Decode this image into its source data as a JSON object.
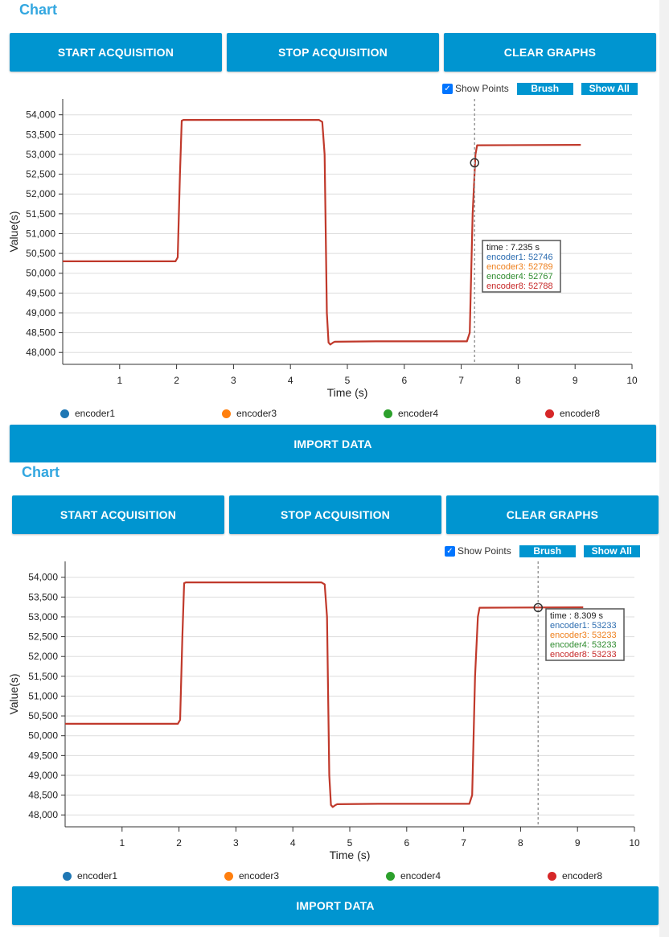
{
  "panels": [
    {
      "heading": "Chart",
      "buttons": {
        "start": "START ACQUISITION",
        "stop": "STOP ACQUISITION",
        "clear": "CLEAR GRAPHS",
        "import": "IMPORT DATA"
      },
      "controls": {
        "show_points_label": "Show Points",
        "show_points_checked": true,
        "brush": "Brush",
        "show_all": "Show All"
      },
      "tooltip": {
        "time": "time : 7.235 s",
        "lines": [
          {
            "text": "encoder1: 52746",
            "color": "#2b6cb0"
          },
          {
            "text": "encoder3: 52789",
            "color": "#ee7f1b"
          },
          {
            "text": "encoder4: 52767",
            "color": "#2e8b2e"
          },
          {
            "text": "encoder8: 52788",
            "color": "#c62828"
          }
        ]
      },
      "cursor": {
        "time": 7.235,
        "value": 52788
      }
    },
    {
      "heading": "Chart",
      "buttons": {
        "start": "START ACQUISITION",
        "stop": "STOP ACQUISITION",
        "clear": "CLEAR GRAPHS",
        "import": "IMPORT DATA"
      },
      "controls": {
        "show_points_label": "Show Points",
        "show_points_checked": true,
        "brush": "Brush",
        "show_all": "Show All"
      },
      "tooltip": {
        "time": "time : 8.309 s",
        "lines": [
          {
            "text": "encoder1: 53233",
            "color": "#2b6cb0"
          },
          {
            "text": "encoder3: 53233",
            "color": "#ee7f1b"
          },
          {
            "text": "encoder4: 53233",
            "color": "#2e8b2e"
          },
          {
            "text": "encoder8: 53233",
            "color": "#c62828"
          }
        ]
      },
      "cursor": {
        "time": 8.309,
        "value": 53233
      }
    }
  ],
  "legend": [
    {
      "name": "encoder1",
      "color": "#1f77b4"
    },
    {
      "name": "encoder3",
      "color": "#ff7f0e"
    },
    {
      "name": "encoder4",
      "color": "#2ca02c"
    },
    {
      "name": "encoder8",
      "color": "#d62728"
    }
  ],
  "chart_data": [
    {
      "type": "line",
      "title": "",
      "xlabel": "Time (s)",
      "ylabel": "Value(s)",
      "xlim": [
        0,
        10
      ],
      "ylim": [
        47700,
        54400
      ],
      "x_ticks": [
        1,
        2,
        3,
        4,
        5,
        6,
        7,
        8,
        9,
        10
      ],
      "y_ticks": [
        48000,
        48500,
        49000,
        49500,
        50000,
        50500,
        51000,
        51500,
        52000,
        52500,
        53000,
        53500,
        54000
      ],
      "y_tick_labels": [
        "48,000",
        "48,500",
        "49,000",
        "49,500",
        "50,000",
        "50,500",
        "51,000",
        "51,500",
        "52,000",
        "52,500",
        "53,000",
        "53,500",
        "54,000"
      ],
      "grid": "horizontal",
      "legend_position": "bottom",
      "series": [
        {
          "name": "encoder8",
          "color": "#c0392b",
          "x": [
            0,
            1.98,
            2.02,
            2.06,
            2.09,
            2.12,
            4.5,
            4.56,
            4.6,
            4.64,
            4.67,
            4.7,
            4.75,
            4.78,
            5.5,
            7.1,
            7.15,
            7.2,
            7.25,
            7.28,
            9.1
          ],
          "y": [
            50300,
            50300,
            50400,
            52500,
            53850,
            53870,
            53870,
            53820,
            53000,
            49000,
            48250,
            48200,
            48250,
            48270,
            48280,
            48280,
            48500,
            51500,
            53000,
            53230,
            53240
          ]
        }
      ]
    },
    {
      "type": "line",
      "title": "",
      "xlabel": "Time (s)",
      "ylabel": "Value(s)",
      "xlim": [
        0,
        10
      ],
      "ylim": [
        47700,
        54400
      ],
      "x_ticks": [
        1,
        2,
        3,
        4,
        5,
        6,
        7,
        8,
        9,
        10
      ],
      "y_ticks": [
        48000,
        48500,
        49000,
        49500,
        50000,
        50500,
        51000,
        51500,
        52000,
        52500,
        53000,
        53500,
        54000
      ],
      "y_tick_labels": [
        "48,000",
        "48,500",
        "49,000",
        "49,500",
        "50,000",
        "50,500",
        "51,000",
        "51,500",
        "52,000",
        "52,500",
        "53,000",
        "53,500",
        "54,000"
      ],
      "grid": "horizontal",
      "legend_position": "bottom",
      "series": [
        {
          "name": "encoder8",
          "color": "#c0392b",
          "x": [
            0,
            1.98,
            2.02,
            2.06,
            2.09,
            2.12,
            4.5,
            4.56,
            4.6,
            4.64,
            4.67,
            4.7,
            4.75,
            4.78,
            5.5,
            7.1,
            7.15,
            7.2,
            7.25,
            7.28,
            9.1
          ],
          "y": [
            50300,
            50300,
            50400,
            52500,
            53850,
            53870,
            53870,
            53820,
            53000,
            49000,
            48250,
            48200,
            48250,
            48270,
            48280,
            48280,
            48500,
            51500,
            53000,
            53230,
            53240
          ]
        }
      ]
    }
  ]
}
